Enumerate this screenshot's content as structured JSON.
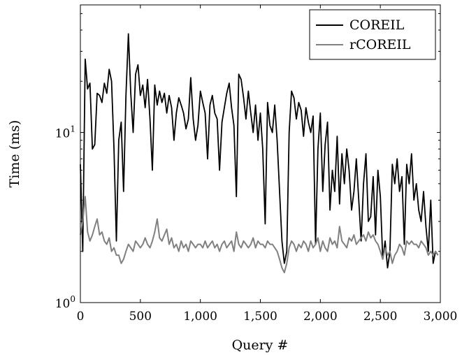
{
  "chart_data": {
    "type": "line",
    "xlabel": "Query #",
    "ylabel": "Time (ms)",
    "xlim": [
      0,
      3000
    ],
    "ylim_log10": [
      0,
      1.75
    ],
    "y_scale": "log",
    "legend": "top-right",
    "grid": false,
    "x_ticks": [
      {
        "value": 0,
        "label": "0"
      },
      {
        "value": 500,
        "label": "500"
      },
      {
        "value": 1000,
        "label": "1,000"
      },
      {
        "value": 1500,
        "label": "1,500"
      },
      {
        "value": 2000,
        "label": "2,000"
      },
      {
        "value": 2500,
        "label": "2,500"
      },
      {
        "value": 3000,
        "label": "3,000"
      }
    ],
    "y_ticks": [
      {
        "value": 1,
        "base": "10",
        "exp": "0"
      },
      {
        "value": 10,
        "base": "10",
        "exp": "1"
      }
    ],
    "series": [
      {
        "name": "COREIL",
        "color": "#000000",
        "x": [
          0,
          20,
          40,
          60,
          80,
          100,
          120,
          140,
          160,
          180,
          200,
          220,
          240,
          260,
          280,
          300,
          320,
          340,
          360,
          380,
          400,
          420,
          440,
          460,
          480,
          500,
          520,
          540,
          560,
          580,
          600,
          620,
          640,
          660,
          680,
          700,
          720,
          740,
          760,
          780,
          800,
          820,
          840,
          860,
          880,
          900,
          920,
          940,
          960,
          980,
          1000,
          1020,
          1040,
          1060,
          1080,
          1100,
          1120,
          1140,
          1160,
          1180,
          1200,
          1220,
          1240,
          1260,
          1280,
          1300,
          1320,
          1340,
          1360,
          1380,
          1400,
          1420,
          1440,
          1460,
          1480,
          1500,
          1520,
          1540,
          1560,
          1580,
          1600,
          1620,
          1640,
          1660,
          1680,
          1700,
          1720,
          1740,
          1760,
          1780,
          1800,
          1820,
          1840,
          1860,
          1880,
          1900,
          1920,
          1940,
          1960,
          1980,
          2000,
          2020,
          2040,
          2060,
          2080,
          2100,
          2120,
          2140,
          2160,
          2180,
          2200,
          2220,
          2240,
          2260,
          2280,
          2300,
          2320,
          2340,
          2360,
          2380,
          2400,
          2420,
          2440,
          2460,
          2480,
          2500,
          2520,
          2540,
          2560,
          2580,
          2600,
          2620,
          2640,
          2660,
          2680,
          2700,
          2720,
          2740,
          2760,
          2780,
          2800,
          2820,
          2840,
          2860,
          2880,
          2900,
          2920,
          2940,
          2960,
          2980
        ],
        "y": [
          6.5,
          2.0,
          27.0,
          18.0,
          19.5,
          8.0,
          8.5,
          17.0,
          16.5,
          15.0,
          19.5,
          17.0,
          23.5,
          20.0,
          8.0,
          2.3,
          9.0,
          11.5,
          4.5,
          16.5,
          38.0,
          17.0,
          10.0,
          22.0,
          25.0,
          16.5,
          19.0,
          14.0,
          20.5,
          12.0,
          6.0,
          19.0,
          14.5,
          17.5,
          15.0,
          17.0,
          13.0,
          16.5,
          14.0,
          9.0,
          13.0,
          16.0,
          14.5,
          13.0,
          10.5,
          12.0,
          21.0,
          12.0,
          9.0,
          11.0,
          17.5,
          15.0,
          13.0,
          7.0,
          14.5,
          16.5,
          13.0,
          12.0,
          6.0,
          11.5,
          14.0,
          17.0,
          19.5,
          14.0,
          11.0,
          4.2,
          22.0,
          20.5,
          16.0,
          12.0,
          17.5,
          13.0,
          10.0,
          14.5,
          9.0,
          13.0,
          8.0,
          2.9,
          15.0,
          11.0,
          10.0,
          14.5,
          9.0,
          4.5,
          2.3,
          1.7,
          2.0,
          10.0,
          17.5,
          16.0,
          12.0,
          15.0,
          13.5,
          9.5,
          14.0,
          11.5,
          10.0,
          12.5,
          2.2,
          8.0,
          13.0,
          4.5,
          8.5,
          11.5,
          3.5,
          6.0,
          4.5,
          9.5,
          3.8,
          7.5,
          5.0,
          8.0,
          6.0,
          3.5,
          4.5,
          7.0,
          4.0,
          2.3,
          5.0,
          7.5,
          3.0,
          3.2,
          5.5,
          2.5,
          6.0,
          4.2,
          1.8,
          2.3,
          1.6,
          2.0,
          6.5,
          5.0,
          7.0,
          4.5,
          5.5,
          2.2,
          6.5,
          5.0,
          7.5,
          4.0,
          5.0,
          3.5,
          3.0,
          4.5,
          2.8,
          2.0,
          4.0,
          1.7,
          2.0,
          1.9
        ]
      },
      {
        "name": "rCOREIL",
        "color": "#808080",
        "x": [
          0,
          20,
          40,
          60,
          80,
          100,
          120,
          140,
          160,
          180,
          200,
          220,
          240,
          260,
          280,
          300,
          320,
          340,
          360,
          380,
          400,
          420,
          440,
          460,
          480,
          500,
          520,
          540,
          560,
          580,
          600,
          620,
          640,
          660,
          680,
          700,
          720,
          740,
          760,
          780,
          800,
          820,
          840,
          860,
          880,
          900,
          920,
          940,
          960,
          980,
          1000,
          1020,
          1040,
          1060,
          1080,
          1100,
          1120,
          1140,
          1160,
          1180,
          1200,
          1220,
          1240,
          1260,
          1280,
          1300,
          1320,
          1340,
          1360,
          1380,
          1400,
          1420,
          1440,
          1460,
          1480,
          1500,
          1520,
          1540,
          1560,
          1580,
          1600,
          1620,
          1640,
          1660,
          1680,
          1700,
          1720,
          1740,
          1760,
          1780,
          1800,
          1820,
          1840,
          1860,
          1880,
          1900,
          1920,
          1940,
          1960,
          1980,
          2000,
          2020,
          2040,
          2060,
          2080,
          2100,
          2120,
          2140,
          2160,
          2180,
          2200,
          2220,
          2240,
          2260,
          2280,
          2300,
          2320,
          2340,
          2360,
          2380,
          2400,
          2420,
          2440,
          2460,
          2480,
          2500,
          2520,
          2540,
          2560,
          2580,
          2600,
          2620,
          2640,
          2660,
          2680,
          2700,
          2720,
          2740,
          2760,
          2780,
          2800,
          2820,
          2840,
          2860,
          2880,
          2900,
          2920,
          2940,
          2960,
          2980
        ],
        "y": [
          2.5,
          3.0,
          4.2,
          2.6,
          2.3,
          2.5,
          2.8,
          3.1,
          2.5,
          2.6,
          2.3,
          2.2,
          2.4,
          2.0,
          2.1,
          1.9,
          1.9,
          1.7,
          1.8,
          2.0,
          2.2,
          2.1,
          2.0,
          2.3,
          2.2,
          2.1,
          2.2,
          2.4,
          2.2,
          2.1,
          2.3,
          2.6,
          3.1,
          2.4,
          2.3,
          2.5,
          2.7,
          2.2,
          2.4,
          2.1,
          2.2,
          2.0,
          2.3,
          2.1,
          2.2,
          2.0,
          2.3,
          2.2,
          2.1,
          2.2,
          2.2,
          2.1,
          2.3,
          2.1,
          2.2,
          2.3,
          2.1,
          2.2,
          2.0,
          2.2,
          2.3,
          2.1,
          2.2,
          2.3,
          2.0,
          2.6,
          2.2,
          2.1,
          2.3,
          2.2,
          2.1,
          2.2,
          2.4,
          2.1,
          2.3,
          2.2,
          2.2,
          2.1,
          2.3,
          2.2,
          2.2,
          2.1,
          2.0,
          1.8,
          1.6,
          1.5,
          1.7,
          2.1,
          2.3,
          2.2,
          2.0,
          2.2,
          2.1,
          2.3,
          2.2,
          2.0,
          2.3,
          2.1,
          2.2,
          2.4,
          2.0,
          2.3,
          2.1,
          2.0,
          2.4,
          2.2,
          2.3,
          2.1,
          2.8,
          2.3,
          2.2,
          2.1,
          2.4,
          2.3,
          2.5,
          2.2,
          2.3,
          2.4,
          2.5,
          2.3,
          2.6,
          2.4,
          2.5,
          2.3,
          2.2,
          2.0,
          1.8,
          2.1,
          1.9,
          2.0,
          1.7,
          1.9,
          2.0,
          2.2,
          2.1,
          1.9,
          2.3,
          2.2,
          2.3,
          2.2,
          2.2,
          2.1,
          2.3,
          2.2,
          2.1,
          1.9,
          2.0,
          1.9,
          2.0,
          1.9
        ]
      }
    ]
  }
}
